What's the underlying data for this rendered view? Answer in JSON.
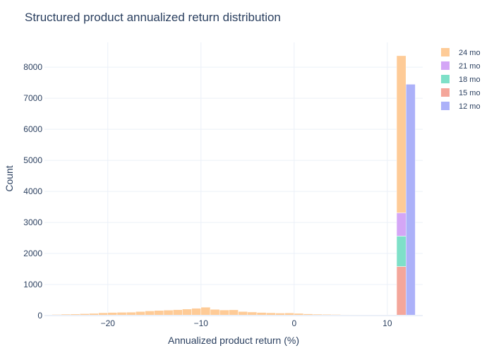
{
  "chart_data": {
    "type": "histogram",
    "title": "Structured product annualized return distribution",
    "xlabel": "Annualized product return (%)",
    "ylabel": "Count",
    "xlim": [
      -26.8,
      13.8
    ],
    "ylim": [
      0,
      8800
    ],
    "xticks": [
      -20,
      -10,
      0,
      10
    ],
    "xtick_labels": [
      "−20",
      "−10",
      "0",
      "10"
    ],
    "yticks": [
      0,
      1000,
      2000,
      3000,
      4000,
      5000,
      6000,
      7000,
      8000
    ],
    "yticks_labels": [
      "0",
      "1000",
      "2000",
      "3000",
      "4000",
      "5000",
      "6000",
      "7000",
      "8000"
    ],
    "grid": true,
    "legend_position": "top-right",
    "bin_width": 1,
    "series": [
      {
        "name": "24 mo",
        "color": "#FECB97",
        "bins": [
          {
            "x0": -27,
            "count": 25
          },
          {
            "x0": -26,
            "count": 35
          },
          {
            "x0": -25,
            "count": 45
          },
          {
            "x0": -24,
            "count": 50
          },
          {
            "x0": -23,
            "count": 60
          },
          {
            "x0": -22,
            "count": 70
          },
          {
            "x0": -21,
            "count": 90
          },
          {
            "x0": -20,
            "count": 100
          },
          {
            "x0": -19,
            "count": 105
          },
          {
            "x0": -18,
            "count": 110
          },
          {
            "x0": -17,
            "count": 130
          },
          {
            "x0": -16,
            "count": 150
          },
          {
            "x0": -15,
            "count": 165
          },
          {
            "x0": -14,
            "count": 175
          },
          {
            "x0": -13,
            "count": 190
          },
          {
            "x0": -12,
            "count": 210
          },
          {
            "x0": -11,
            "count": 235
          },
          {
            "x0": -10,
            "count": 270
          },
          {
            "x0": -9,
            "count": 200
          },
          {
            "x0": -8,
            "count": 180
          },
          {
            "x0": -7,
            "count": 185
          },
          {
            "x0": -6,
            "count": 130
          },
          {
            "x0": -5,
            "count": 115
          },
          {
            "x0": -4,
            "count": 100
          },
          {
            "x0": -3,
            "count": 90
          },
          {
            "x0": -2,
            "count": 80
          },
          {
            "x0": -1,
            "count": 85
          },
          {
            "x0": 0,
            "count": 70
          },
          {
            "x0": 1,
            "count": 55
          },
          {
            "x0": 2,
            "count": 45
          },
          {
            "x0": 3,
            "count": 40
          },
          {
            "x0": 4,
            "count": 35
          },
          {
            "x0": 5,
            "count": 30
          },
          {
            "x0": 6,
            "count": 25
          },
          {
            "x0": 7,
            "count": 20
          },
          {
            "x0": 8,
            "count": 15
          },
          {
            "x0": 9,
            "count": 10
          },
          {
            "x0": 10,
            "count": 5
          },
          {
            "x0": 11,
            "count": 5060
          }
        ]
      },
      {
        "name": "21 mo",
        "color": "#D4A6F6",
        "bins": [
          {
            "x0": 11,
            "count": 750
          }
        ]
      },
      {
        "name": "18 mo",
        "color": "#7EE0C8",
        "bins": [
          {
            "x0": 11,
            "count": 980
          }
        ]
      },
      {
        "name": "15 mo",
        "color": "#F4A69A",
        "bins": [
          {
            "x0": 11,
            "count": 1580
          }
        ]
      },
      {
        "name": "12 mo",
        "color": "#ACB1F9",
        "bins": [
          {
            "x0": 12,
            "count": 7450
          }
        ]
      }
    ]
  }
}
